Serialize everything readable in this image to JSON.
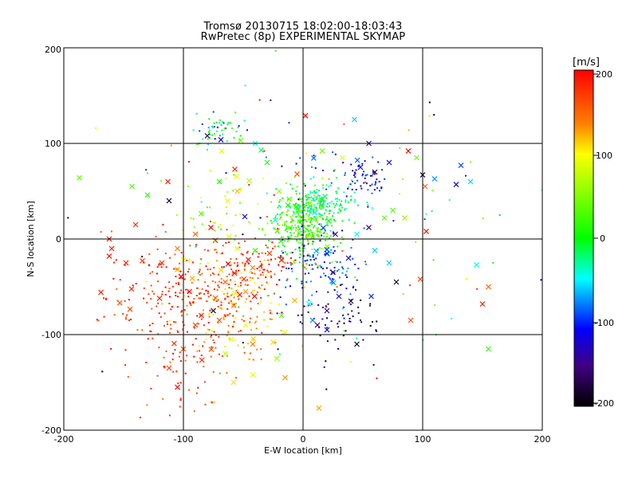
{
  "chart_data": {
    "type": "scatter",
    "title": "Tromsø 20130715 18:02:00-18:03:43",
    "subtitle": "RwPretec (8p) EXPERIMENTAL SKYMAP",
    "xlabel": "E-W location [km]",
    "ylabel": "N-S location [km]",
    "xlim": [
      -200,
      200
    ],
    "ylim": [
      -200,
      200
    ],
    "x_ticks": [
      "-200",
      "-100",
      "0",
      "100",
      "200"
    ],
    "y_ticks": [
      "200",
      "100",
      "0",
      "-100",
      "-200"
    ],
    "grid": true,
    "colorbar": {
      "label": "[m/s]",
      "min": -200,
      "max": 200,
      "tick_labels": [
        "200",
        "100",
        "0",
        "-100",
        "-200"
      ],
      "colors": [
        "#ff0000",
        "#ff8000",
        "#ffff00",
        "#00ff00",
        "#00ffff",
        "#0000ff",
        "#000000"
      ]
    },
    "clusters": [
      {
        "cx": -95,
        "cy": -60,
        "sx": 35,
        "sy": 30,
        "n": 260,
        "vmin": 150,
        "vmax": 200
      },
      {
        "cx": -60,
        "cy": -70,
        "sx": 25,
        "sy": 25,
        "n": 120,
        "vmin": 90,
        "vmax": 150
      },
      {
        "cx": -40,
        "cy": -25,
        "sx": 25,
        "sy": 12,
        "n": 100,
        "vmin": 140,
        "vmax": 200
      },
      {
        "cx": -100,
        "cy": -130,
        "sx": 25,
        "sy": 30,
        "n": 60,
        "vmin": 140,
        "vmax": 200
      },
      {
        "cx": 0,
        "cy": 15,
        "sx": 12,
        "sy": 18,
        "n": 320,
        "vmin": 0,
        "vmax": 60
      },
      {
        "cx": 15,
        "cy": 35,
        "sx": 15,
        "sy": 10,
        "n": 160,
        "vmin": -60,
        "vmax": 10
      },
      {
        "cx": 15,
        "cy": -25,
        "sx": 18,
        "sy": 18,
        "n": 110,
        "vmin": -120,
        "vmax": -60
      },
      {
        "cx": 50,
        "cy": 65,
        "sx": 12,
        "sy": 12,
        "n": 60,
        "vmin": -140,
        "vmax": -80
      },
      {
        "cx": -70,
        "cy": 115,
        "sx": 10,
        "sy": 10,
        "n": 50,
        "vmin": -120,
        "vmax": 40
      },
      {
        "cx": 30,
        "cy": -80,
        "sx": 20,
        "sy": 20,
        "n": 60,
        "vmin": -200,
        "vmax": -100
      },
      {
        "cx": -70,
        "cy": 30,
        "sx": 20,
        "sy": 20,
        "n": 40,
        "vmin": 30,
        "vmax": 110
      },
      {
        "cx": 0,
        "cy": 0,
        "sx": 80,
        "sy": 70,
        "n": 140,
        "vmin": -200,
        "vmax": 200
      }
    ],
    "large_markers": [
      {
        "x": -187,
        "y": 64,
        "v": 40
      },
      {
        "x": -160,
        "y": -10,
        "v": 190
      },
      {
        "x": -143,
        "y": 55,
        "v": 30
      },
      {
        "x": -130,
        "y": 46,
        "v": 20
      },
      {
        "x": -140,
        "y": 15,
        "v": 180
      },
      {
        "x": -113,
        "y": 60,
        "v": 190
      },
      {
        "x": -112,
        "y": 40,
        "v": -180
      },
      {
        "x": -148,
        "y": -25,
        "v": 190
      },
      {
        "x": -105,
        "y": -10,
        "v": 140
      },
      {
        "x": -118,
        "y": -25,
        "v": 180
      },
      {
        "x": -100,
        "y": -22,
        "v": 100
      },
      {
        "x": -63,
        "y": 40,
        "v": 90
      },
      {
        "x": -77,
        "y": 12,
        "v": 200
      },
      {
        "x": -90,
        "y": 5,
        "v": 150
      },
      {
        "x": -80,
        "y": 108,
        "v": -160
      },
      {
        "x": -68,
        "y": 92,
        "v": 90
      },
      {
        "x": -52,
        "y": 103,
        "v": 50
      },
      {
        "x": -57,
        "y": 73,
        "v": 180
      },
      {
        "x": -40,
        "y": 100,
        "v": -40
      },
      {
        "x": -35,
        "y": 93,
        "v": -20
      },
      {
        "x": -70,
        "y": 60,
        "v": 10
      },
      {
        "x": -55,
        "y": 50,
        "v": 120
      },
      {
        "x": -20,
        "y": 50,
        "v": 60
      },
      {
        "x": -30,
        "y": 80,
        "v": 10
      },
      {
        "x": 2,
        "y": 129,
        "v": 200
      },
      {
        "x": 43,
        "y": 125,
        "v": -60
      },
      {
        "x": -5,
        "y": 68,
        "v": 160
      },
      {
        "x": 16,
        "y": 92,
        "v": 40
      },
      {
        "x": 33,
        "y": 85,
        "v": 90
      },
      {
        "x": 55,
        "y": 100,
        "v": -130
      },
      {
        "x": 48,
        "y": 75,
        "v": -120
      },
      {
        "x": 60,
        "y": 70,
        "v": -180
      },
      {
        "x": 72,
        "y": 80,
        "v": -110
      },
      {
        "x": 88,
        "y": 92,
        "v": 200
      },
      {
        "x": 95,
        "y": 85,
        "v": 40
      },
      {
        "x": 100,
        "y": 67,
        "v": -180
      },
      {
        "x": 102,
        "y": 55,
        "v": 150
      },
      {
        "x": 110,
        "y": 63,
        "v": -70
      },
      {
        "x": 128,
        "y": 57,
        "v": -120
      },
      {
        "x": 132,
        "y": 77,
        "v": -90
      },
      {
        "x": 140,
        "y": 60,
        "v": -60
      },
      {
        "x": 103,
        "y": 8,
        "v": 190
      },
      {
        "x": 85,
        "y": 22,
        "v": 60
      },
      {
        "x": 68,
        "y": 22,
        "v": 40
      },
      {
        "x": 75,
        "y": 30,
        "v": 30
      },
      {
        "x": 55,
        "y": 12,
        "v": -150
      },
      {
        "x": 45,
        "y": 5,
        "v": -50
      },
      {
        "x": 60,
        "y": -12,
        "v": -60
      },
      {
        "x": 72,
        "y": -25,
        "v": -60
      },
      {
        "x": 78,
        "y": -45,
        "v": -190
      },
      {
        "x": 98,
        "y": -42,
        "v": 160
      },
      {
        "x": 90,
        "y": -85,
        "v": 160
      },
      {
        "x": 57,
        "y": -60,
        "v": -100
      },
      {
        "x": 30,
        "y": -60,
        "v": -120
      },
      {
        "x": 20,
        "y": -75,
        "v": -140
      },
      {
        "x": 12,
        "y": -90,
        "v": -160
      },
      {
        "x": 20,
        "y": -95,
        "v": -120
      },
      {
        "x": 40,
        "y": -65,
        "v": -180
      },
      {
        "x": 45,
        "y": -110,
        "v": -190
      },
      {
        "x": 145,
        "y": -27,
        "v": -40
      },
      {
        "x": 155,
        "y": -50,
        "v": 150
      },
      {
        "x": 150,
        "y": -68,
        "v": 180
      },
      {
        "x": 155,
        "y": -115,
        "v": 20
      },
      {
        "x": -162,
        "y": 0,
        "v": 190
      },
      {
        "x": -162,
        "y": -18,
        "v": 190
      },
      {
        "x": -120,
        "y": -62,
        "v": 180
      },
      {
        "x": -105,
        "y": -32,
        "v": 120
      },
      {
        "x": -95,
        "y": -55,
        "v": 200
      },
      {
        "x": -85,
        "y": -80,
        "v": 180
      },
      {
        "x": -90,
        "y": -90,
        "v": 170
      },
      {
        "x": -65,
        "y": -45,
        "v": 150
      },
      {
        "x": -48,
        "y": -55,
        "v": 130
      },
      {
        "x": -70,
        "y": -85,
        "v": 160
      },
      {
        "x": -75,
        "y": -75,
        "v": -200
      },
      {
        "x": -42,
        "y": -30,
        "v": 140
      },
      {
        "x": -40,
        "y": -12,
        "v": 20
      },
      {
        "x": -55,
        "y": -10,
        "v": 80
      },
      {
        "x": -18,
        "y": -22,
        "v": 190
      },
      {
        "x": -28,
        "y": -15,
        "v": 170
      },
      {
        "x": -18,
        "y": -80,
        "v": 40
      },
      {
        "x": -15,
        "y": -98,
        "v": 90
      },
      {
        "x": -48,
        "y": -90,
        "v": 100
      },
      {
        "x": -42,
        "y": -110,
        "v": 140
      },
      {
        "x": -25,
        "y": -108,
        "v": 110
      },
      {
        "x": -60,
        "y": -105,
        "v": 90
      },
      {
        "x": -65,
        "y": -120,
        "v": 70
      },
      {
        "x": -22,
        "y": -125,
        "v": 60
      },
      {
        "x": -15,
        "y": -145,
        "v": 130
      },
      {
        "x": -100,
        "y": -115,
        "v": 160
      },
      {
        "x": -105,
        "y": -155,
        "v": 200
      },
      {
        "x": -112,
        "y": -135,
        "v": 170
      },
      {
        "x": -42,
        "y": -142,
        "v": 90
      },
      {
        "x": -58,
        "y": -150,
        "v": 110
      },
      {
        "x": 5,
        "y": -68,
        "v": -50
      },
      {
        "x": 8,
        "y": -85,
        "v": -80
      },
      {
        "x": 25,
        "y": -35,
        "v": -160
      },
      {
        "x": 38,
        "y": -20,
        "v": -120
      },
      {
        "x": 27,
        "y": 5,
        "v": -150
      },
      {
        "x": 20,
        "y": -15,
        "v": -100
      }
    ],
    "annotations": [
      {
        "x": -95,
        "y": -22,
        "v": 80,
        "glyph": "+"
      }
    ]
  }
}
